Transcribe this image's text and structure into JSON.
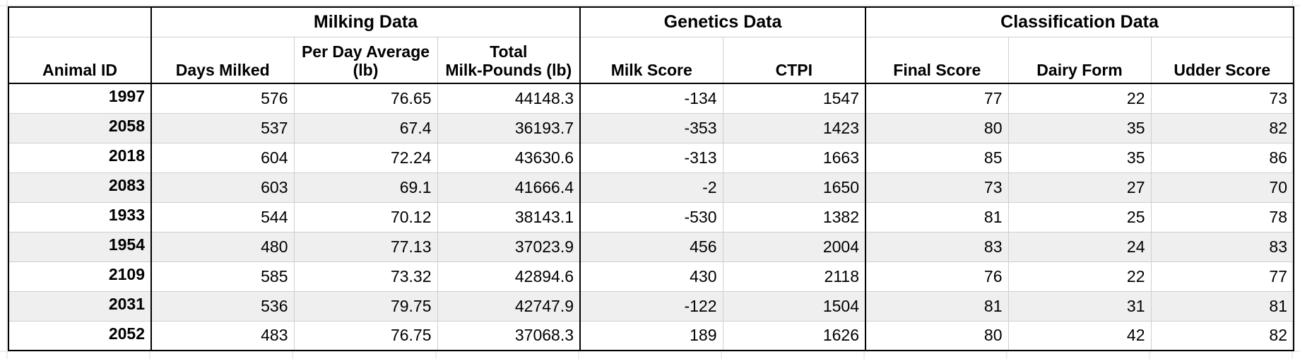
{
  "groups": {
    "milking": "Milking Data",
    "genetics": "Genetics Data",
    "classification": "Classification Data"
  },
  "columns": {
    "animal_id": "Animal ID",
    "days_milked": "Days Milked",
    "per_day_avg_line1": "Per Day Average",
    "per_day_avg_line2": "(lb)",
    "total_line1": "Total",
    "total_line2": "Milk-Pounds (lb)",
    "milk_score": "Milk Score",
    "ctpi": "CTPI",
    "final_score": "Final Score",
    "dairy_form": "Dairy Form",
    "udder_score": "Udder Score"
  },
  "rows": [
    {
      "id": "1997",
      "days": "576",
      "avg": "76.65",
      "total": "44148.3",
      "milk_score": "-134",
      "ctpi": "1547",
      "final": "77",
      "dairy": "22",
      "udder": "73"
    },
    {
      "id": "2058",
      "days": "537",
      "avg": "67.4",
      "total": "36193.7",
      "milk_score": "-353",
      "ctpi": "1423",
      "final": "80",
      "dairy": "35",
      "udder": "82"
    },
    {
      "id": "2018",
      "days": "604",
      "avg": "72.24",
      "total": "43630.6",
      "milk_score": "-313",
      "ctpi": "1663",
      "final": "85",
      "dairy": "35",
      "udder": "86"
    },
    {
      "id": "2083",
      "days": "603",
      "avg": "69.1",
      "total": "41666.4",
      "milk_score": "-2",
      "ctpi": "1650",
      "final": "73",
      "dairy": "27",
      "udder": "70"
    },
    {
      "id": "1933",
      "days": "544",
      "avg": "70.12",
      "total": "38143.1",
      "milk_score": "-530",
      "ctpi": "1382",
      "final": "81",
      "dairy": "25",
      "udder": "78"
    },
    {
      "id": "1954",
      "days": "480",
      "avg": "77.13",
      "total": "37023.9",
      "milk_score": "456",
      "ctpi": "2004",
      "final": "83",
      "dairy": "24",
      "udder": "83"
    },
    {
      "id": "2109",
      "days": "585",
      "avg": "73.32",
      "total": "42894.6",
      "milk_score": "430",
      "ctpi": "2118",
      "final": "76",
      "dairy": "22",
      "udder": "77"
    },
    {
      "id": "2031",
      "days": "536",
      "avg": "79.75",
      "total": "42747.9",
      "milk_score": "-122",
      "ctpi": "1504",
      "final": "81",
      "dairy": "31",
      "udder": "81"
    },
    {
      "id": "2052",
      "days": "483",
      "avg": "76.75",
      "total": "37068.3",
      "milk_score": "189",
      "ctpi": "1626",
      "final": "80",
      "dairy": "42",
      "udder": "82"
    }
  ]
}
